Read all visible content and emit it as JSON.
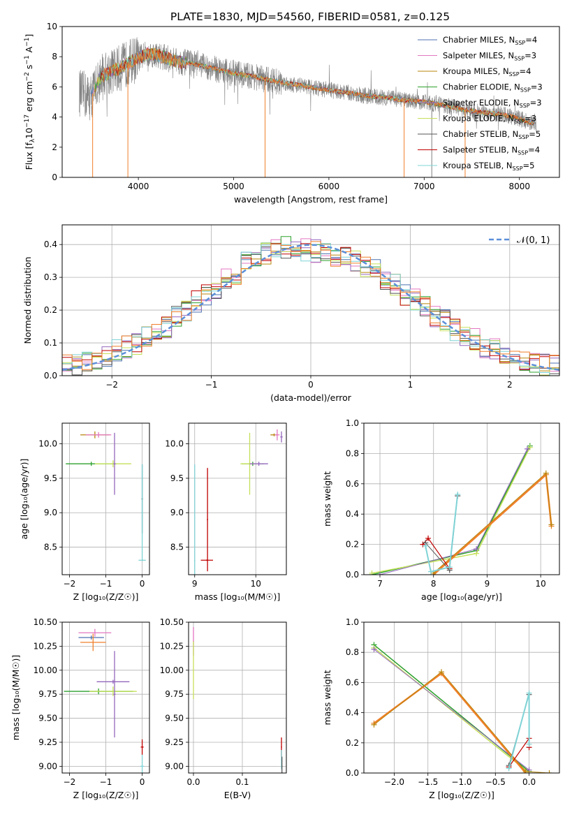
{
  "title": "PLATE=1830, MJD=54560, FIBERID=0581, z=0.125",
  "colors": {
    "Chabrier MILES": "#4c72b0",
    "Salpeter MILES": "#e377c2",
    "Kroupa MILES": "#b8860b",
    "Chabrier ELODIE": "#2ca02c",
    "Salpeter ELODIE": "#9467bd",
    "Kroupa ELODIE": "#c5e05a",
    "Chabrier STELIB": "#555555",
    "Salpeter STELIB": "#c00000",
    "Kroupa STELIB": "#7fd3d6",
    "data": "#808080",
    "normal": "#5b8fd9",
    "extra": "#f07f2a"
  },
  "chart_data": [
    {
      "id": "spectrum",
      "type": "line",
      "xlabel": "wavelength [Angstrom, rest frame]",
      "ylabel_parts": [
        "Flux [f",
        "λ",
        "10",
        "−17",
        " erg cm",
        "−2",
        " s",
        "−1",
        " A",
        "−1",
        "]"
      ],
      "xlim": [
        3200,
        8420
      ],
      "ylim": [
        0,
        10
      ],
      "xticks": [
        "4000",
        "5000",
        "6000",
        "7000",
        "8000"
      ],
      "yticks": [
        "0",
        "2",
        "4",
        "6",
        "8",
        "10"
      ],
      "legend": [
        {
          "pre": "Chabrier MILES, N",
          "sub": "SSP",
          "post": "=4"
        },
        {
          "pre": "Salpeter MILES, N",
          "sub": "SSP",
          "post": "=3"
        },
        {
          "pre": "Kroupa MILES, N",
          "sub": "SSP",
          "post": "=4"
        },
        {
          "pre": "Chabrier ELODIE, N",
          "sub": "SSP",
          "post": "=3"
        },
        {
          "pre": "Salpeter ELODIE, N",
          "sub": "SSP",
          "post": "=3"
        },
        {
          "pre": "Kroupa ELODIE, N",
          "sub": "SSP",
          "post": "=3"
        },
        {
          "pre": "Chabrier STELIB, N",
          "sub": "SSP",
          "post": "=5"
        },
        {
          "pre": "Salpeter STELIB, N",
          "sub": "SSP",
          "post": "=4"
        },
        {
          "pre": "Kroupa STELIB, N",
          "sub": "SSP",
          "post": "=5"
        }
      ],
      "continuum": [
        [
          3380,
          5.6
        ],
        [
          3500,
          5.3
        ],
        [
          3600,
          6.6
        ],
        [
          3700,
          7.0
        ],
        [
          3800,
          7.2
        ],
        [
          3900,
          7.6
        ],
        [
          4000,
          7.9
        ],
        [
          4100,
          8.2
        ],
        [
          4200,
          8.1
        ],
        [
          4300,
          7.9
        ],
        [
          4400,
          7.7
        ],
        [
          4600,
          7.5
        ],
        [
          4800,
          7.2
        ],
        [
          5000,
          6.9
        ],
        [
          5200,
          6.7
        ],
        [
          5400,
          6.4
        ],
        [
          5600,
          6.2
        ],
        [
          5800,
          6.0
        ],
        [
          6000,
          5.8
        ],
        [
          6200,
          5.6
        ],
        [
          6400,
          5.4
        ],
        [
          6600,
          5.3
        ],
        [
          6800,
          5.1
        ],
        [
          7000,
          5.0
        ],
        [
          7200,
          4.8
        ],
        [
          7400,
          4.5
        ],
        [
          7600,
          4.3
        ],
        [
          7800,
          4.2
        ],
        [
          8000,
          3.9
        ],
        [
          8180,
          3.5
        ]
      ]
    },
    {
      "id": "residuals",
      "type": "step",
      "xlabel": "(data-model)/error",
      "ylabel": "Normed distribution",
      "xlim": [
        -2.5,
        2.5
      ],
      "ylim": [
        0,
        0.46
      ],
      "xticks": [
        "−2",
        "−1",
        "0",
        "1",
        "2"
      ],
      "yticks": [
        "0.0",
        "0.1",
        "0.2",
        "0.3",
        "0.4"
      ],
      "legend": "𝒩(0, 1)",
      "bin_width": 0.1,
      "envelope": [
        0.026,
        0.03,
        0.034,
        0.04,
        0.046,
        0.052,
        0.06,
        0.068,
        0.077,
        0.087,
        0.098,
        0.11,
        0.122,
        0.135,
        0.15,
        0.165,
        0.18,
        0.196,
        0.212,
        0.228,
        0.245,
        0.262,
        0.279,
        0.296,
        0.312,
        0.328,
        0.343,
        0.357,
        0.37,
        0.38,
        0.386,
        0.39,
        0.39,
        0.388,
        0.384,
        0.38,
        0.376,
        0.372,
        0.368,
        0.362,
        0.355,
        0.346,
        0.335,
        0.322,
        0.308,
        0.294,
        0.279,
        0.263,
        0.247,
        0.231,
        0.214,
        0.198,
        0.182,
        0.167,
        0.152,
        0.138,
        0.124,
        0.112,
        0.1,
        0.089,
        0.079,
        0.07,
        0.062,
        0.055,
        0.048,
        0.043,
        0.038,
        0.034,
        0.03,
        0.027
      ]
    },
    {
      "id": "age-vs-Z",
      "type": "scatter",
      "xlabel": "Z [log₁₀(Z/Z☉)]",
      "ylabel": "age  [log₁₀(age/yr)]",
      "xlim": [
        -2.2,
        0.2
      ],
      "ylim": [
        8.1,
        10.3
      ],
      "xticks": [
        "−2",
        "−1",
        "0"
      ],
      "yticks": [
        "8.5",
        "9.0",
        "9.5",
        "10.0"
      ],
      "points": [
        {
          "x": -1.3,
          "y": 10.13,
          "xerr": 0.4,
          "yerr": 0.05,
          "color": "#b8860b"
        },
        {
          "x": -1.2,
          "y": 10.13,
          "xerr": 0.35,
          "yerr": 0.04,
          "color": "#e377c2"
        },
        {
          "x": -1.4,
          "y": 9.71,
          "xerr": 0.7,
          "yerr": 0.03,
          "color": "#2ca02c"
        },
        {
          "x": -0.8,
          "y": 9.71,
          "xerr": 0.5,
          "yerr": 0.05,
          "color": "#c5e05a"
        },
        {
          "x": -0.76,
          "y": 9.71,
          "xerr": 0.03,
          "yerr": 0.45,
          "color": "#9467bd"
        },
        {
          "x": 0.0,
          "y": 9.2,
          "xerr": 0.02,
          "yerr": 0.5,
          "color": "#555555"
        },
        {
          "x": 0.0,
          "y": 9.0,
          "xerr": 0.02,
          "yerr": 0.7,
          "color": "#7fd3d6"
        },
        {
          "x": 0.0,
          "y": 8.31,
          "xerr": 0.1,
          "yerr": 0.01,
          "color": "#7fd3d6"
        }
      ]
    },
    {
      "id": "age-vs-mass",
      "type": "scatter",
      "xlabel": "mass [log₁₀(M/M☉)]",
      "ylabel": "",
      "xlim": [
        8.9,
        10.5
      ],
      "ylim": [
        8.1,
        10.3
      ],
      "xticks": [
        "9",
        "10"
      ],
      "yticks": [
        "8.5",
        "9.0",
        "9.5",
        "10.0"
      ],
      "points": [
        {
          "x": 10.3,
          "y": 10.13,
          "xerr": 0.06,
          "yerr": 0.02,
          "color": "#b8860b"
        },
        {
          "x": 10.35,
          "y": 10.13,
          "xerr": 0.04,
          "yerr": 0.08,
          "color": "#e377c2"
        },
        {
          "x": 10.42,
          "y": 10.1,
          "xerr": 0.02,
          "yerr": 0.08,
          "color": "#9467bd"
        },
        {
          "x": 9.95,
          "y": 9.71,
          "xerr": 0.18,
          "yerr": 0.03,
          "color": "#2ca02c"
        },
        {
          "x": 9.9,
          "y": 9.71,
          "xerr": 0.15,
          "yerr": 0.45,
          "color": "#c5e05a"
        },
        {
          "x": 10.05,
          "y": 9.71,
          "xerr": 0.15,
          "yerr": 0.03,
          "color": "#9467bd"
        },
        {
          "x": 9.0,
          "y": 8.3,
          "xerr": 0.01,
          "yerr": 1.4,
          "color": "#7fd3d6"
        },
        {
          "x": 9.2,
          "y": 8.31,
          "xerr": 0.1,
          "yerr": 0.01,
          "color": "#c00000"
        },
        {
          "x": 9.21,
          "y": 8.9,
          "xerr": 0.01,
          "yerr": 0.75,
          "color": "#c00000"
        }
      ]
    },
    {
      "id": "massweight-vs-age",
      "type": "line",
      "xlabel": "age  [log₁₀(age/yr)]",
      "ylabel": "mass weight",
      "xlim": [
        6.7,
        10.35
      ],
      "ylim": [
        0,
        1.0
      ],
      "xticks": [
        "7",
        "8",
        "9",
        "10"
      ],
      "yticks": [
        "0.0",
        "0.2",
        "0.4",
        "0.6",
        "0.8",
        "1.0"
      ],
      "series": [
        {
          "color": "#2ca02c",
          "width": 1.5,
          "points": [
            [
              6.85,
              0.0
            ],
            [
              8.8,
              0.16
            ],
            [
              9.8,
              0.85
            ]
          ]
        },
        {
          "color": "#c5e05a",
          "width": 1.5,
          "points": [
            [
              6.85,
              0.01
            ],
            [
              8.8,
              0.14
            ],
            [
              9.8,
              0.84
            ]
          ]
        },
        {
          "color": "#9467bd",
          "width": 1.0,
          "points": [
            [
              7.0,
              0.0
            ],
            [
              8.8,
              0.17
            ],
            [
              9.75,
              0.83
            ]
          ]
        },
        {
          "color": "#f07f2a",
          "width": 2.5,
          "points": [
            [
              8.0,
              0.0
            ],
            [
              10.1,
              0.66
            ],
            [
              10.2,
              0.32
            ]
          ]
        },
        {
          "color": "#b8860b",
          "width": 1.0,
          "points": [
            [
              8.0,
              0.01
            ],
            [
              10.1,
              0.67
            ],
            [
              10.2,
              0.33
            ]
          ]
        },
        {
          "color": "#c00000",
          "width": 1.2,
          "points": [
            [
              7.8,
              0.2
            ],
            [
              7.9,
              0.24
            ],
            [
              8.3,
              0.04
            ]
          ]
        },
        {
          "color": "#555555",
          "width": 1.0,
          "points": [
            [
              7.85,
              0.21
            ],
            [
              8.3,
              0.03
            ],
            [
              8.45,
              0.52
            ]
          ]
        },
        {
          "color": "#7fd3d6",
          "width": 2.0,
          "points": [
            [
              7.85,
              0.19
            ],
            [
              7.95,
              0.02
            ],
            [
              8.3,
              0.05
            ],
            [
              8.45,
              0.53
            ]
          ]
        }
      ]
    },
    {
      "id": "mass-vs-Z",
      "type": "scatter",
      "xlabel": "Z [log₁₀(Z/Z☉)]",
      "ylabel": "mass [log₁₀(M/M☉)]",
      "xlim": [
        -2.2,
        0.2
      ],
      "ylim": [
        8.93,
        10.5
      ],
      "xticks": [
        "−2",
        "−1",
        "0"
      ],
      "yticks": [
        "9.00",
        "9.25",
        "9.50",
        "9.75",
        "10.00",
        "10.25",
        "10.50"
      ],
      "points": [
        {
          "x": -1.3,
          "y": 10.39,
          "xerr": 0.45,
          "yerr": 0.04,
          "color": "#e377c2"
        },
        {
          "x": -1.4,
          "y": 10.34,
          "xerr": 0.35,
          "yerr": 0.02,
          "color": "#4c72b0"
        },
        {
          "x": -1.35,
          "y": 10.29,
          "xerr": 0.35,
          "yerr": 0.09,
          "color": "#f07f2a"
        },
        {
          "x": -1.2,
          "y": 9.78,
          "xerr": 0.95,
          "yerr": 0.03,
          "color": "#2ca02c"
        },
        {
          "x": -0.8,
          "y": 9.78,
          "xerr": 0.65,
          "yerr": 0.05,
          "color": "#c5e05a"
        },
        {
          "x": -0.76,
          "y": 9.75,
          "xerr": 0.03,
          "yerr": 0.45,
          "color": "#9467bd"
        },
        {
          "x": -0.8,
          "y": 9.88,
          "xerr": 0.45,
          "yerr": 0.02,
          "color": "#9467bd"
        },
        {
          "x": 0.0,
          "y": 9.2,
          "xerr": 0.04,
          "yerr": 0.08,
          "color": "#c00000"
        },
        {
          "x": 0.0,
          "y": 9.0,
          "xerr": 0.05,
          "yerr": 0.12,
          "color": "#7fd3d6"
        }
      ]
    },
    {
      "id": "mass-vs-ebv",
      "type": "scatter",
      "xlabel": "E(B-V)",
      "ylabel": "",
      "xlim": [
        -0.01,
        0.19
      ],
      "ylim": [
        8.93,
        10.5
      ],
      "xticks": [
        "0.0",
        "0.1"
      ],
      "yticks": [
        "9.00",
        "9.25",
        "9.50",
        "9.75",
        "10.00",
        "10.25",
        "10.50"
      ],
      "points": [
        {
          "x": 0.0,
          "y": 10.3,
          "xerr": 0.001,
          "yerr": 0.15,
          "color": "#e377c2"
        },
        {
          "x": 0.0,
          "y": 10.0,
          "xerr": 0.001,
          "yerr": 0.3,
          "color": "#c5e05a"
        },
        {
          "x": 0.18,
          "y": 9.2,
          "xerr": 0.001,
          "yerr": 0.1,
          "color": "#c00000"
        },
        {
          "x": 0.18,
          "y": 9.07,
          "xerr": 0.001,
          "yerr": 0.1,
          "color": "#7fd3d6"
        },
        {
          "x": 0.181,
          "y": 9.0,
          "xerr": 0.001,
          "yerr": 0.1,
          "color": "#555555"
        }
      ]
    },
    {
      "id": "massweight-vs-Z",
      "type": "line",
      "xlabel": "Z [log₁₀(Z/Z☉)]",
      "ylabel": "mass weight",
      "xlim": [
        -2.45,
        0.45
      ],
      "ylim": [
        0,
        1.0
      ],
      "xticks": [
        "−2.0",
        "−1.5",
        "−1.0",
        "−0.5",
        "0.0"
      ],
      "yticks": [
        "0.0",
        "0.2",
        "0.4",
        "0.6",
        "0.8",
        "1.0"
      ],
      "series": [
        {
          "color": "#2ca02c",
          "width": 1.5,
          "points": [
            [
              -2.3,
              0.85
            ],
            [
              0.0,
              0.01
            ]
          ]
        },
        {
          "color": "#c5e05a",
          "width": 1.5,
          "points": [
            [
              -2.3,
              0.83
            ],
            [
              0.0,
              0.0
            ]
          ]
        },
        {
          "color": "#9467bd",
          "width": 1.0,
          "points": [
            [
              -2.3,
              0.82
            ],
            [
              0.0,
              0.02
            ]
          ]
        },
        {
          "color": "#f07f2a",
          "width": 2.5,
          "points": [
            [
              -2.3,
              0.33
            ],
            [
              -1.3,
              0.66
            ],
            [
              -0.05,
              0.0
            ]
          ]
        },
        {
          "color": "#b8860b",
          "width": 1.0,
          "points": [
            [
              -2.3,
              0.32
            ],
            [
              -1.3,
              0.67
            ],
            [
              -0.05,
              0.01
            ],
            [
              0.3,
              0.0
            ]
          ]
        },
        {
          "color": "#c00000",
          "width": 1.2,
          "points": [
            [
              -0.3,
              0.04
            ],
            [
              0.0,
              0.23
            ],
            [
              0.0,
              0.17
            ]
          ]
        },
        {
          "color": "#555555",
          "width": 1.0,
          "points": [
            [
              -0.3,
              0.05
            ],
            [
              0.0,
              0.52
            ]
          ]
        },
        {
          "color": "#7fd3d6",
          "width": 2.0,
          "points": [
            [
              -0.3,
              0.03
            ],
            [
              0.0,
              0.53
            ],
            [
              0.0,
              0.19
            ]
          ]
        }
      ]
    }
  ]
}
